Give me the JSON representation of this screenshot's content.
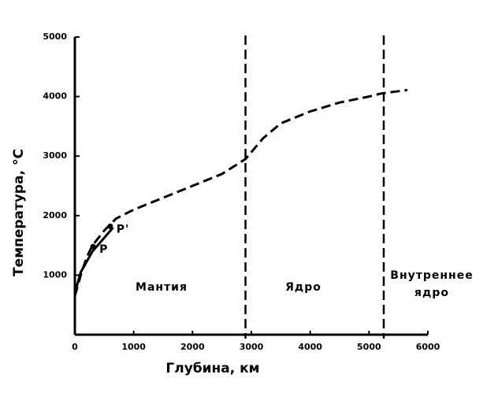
{
  "chart_data": {
    "type": "line",
    "x_label": "Глубина, км",
    "y_label": "Температура, °C",
    "xlim": [
      0,
      6000
    ],
    "ylim": [
      0,
      5000
    ],
    "xticks": [
      0,
      1000,
      2000,
      3000,
      4000,
      5000,
      6000
    ],
    "yticks": [
      1000,
      2000,
      3000,
      4000,
      5000
    ],
    "series": [
      {
        "color": "#000000",
        "style": "dashed",
        "x": [
          0,
          100,
          200,
          300,
          500,
          700,
          1000,
          1500,
          2000,
          2500,
          2900,
          3200,
          3500,
          4000,
          4500,
          5000,
          5200,
          5650
        ],
        "values": [
          650,
          1000,
          1300,
          1500,
          1750,
          1950,
          2100,
          2300,
          2500,
          2700,
          2950,
          3300,
          3550,
          3750,
          3900,
          4000,
          4050,
          4110
        ]
      },
      {
        "color": "#000000",
        "style": "solid",
        "x": [
          0,
          100,
          300,
          650
        ],
        "values": [
          700,
          1050,
          1400,
          1800
        ]
      }
    ],
    "points": [
      {
        "label": "P",
        "x": 310,
        "y": 1480
      },
      {
        "label": "P'",
        "x": 600,
        "y": 1820
      }
    ],
    "vlines": [
      2900,
      5250
    ],
    "regions": [
      [
        "Мантия"
      ],
      [
        "Ядро"
      ],
      [
        "Внутреннее",
        "ядро"
      ]
    ]
  }
}
